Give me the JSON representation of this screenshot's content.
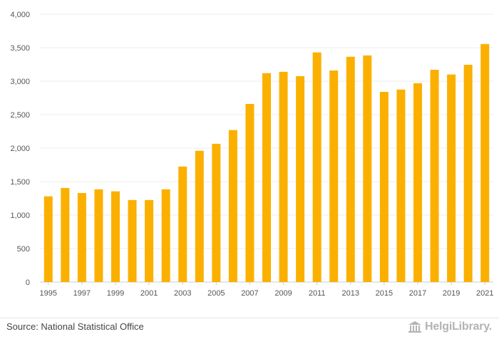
{
  "chart_data": {
    "type": "bar",
    "title": "",
    "xlabel": "",
    "ylabel": "",
    "ylim": [
      0,
      4000
    ],
    "yticks": [
      0,
      500,
      1000,
      1500,
      2000,
      2500,
      3000,
      3500,
      4000
    ],
    "ytick_labels": [
      "0",
      "500",
      "1,000",
      "1,500",
      "2,000",
      "2,500",
      "3,000",
      "3,500",
      "4,000"
    ],
    "categories": [
      "1995",
      "1996",
      "1997",
      "1998",
      "1999",
      "2000",
      "2001",
      "2002",
      "2003",
      "2004",
      "2005",
      "2006",
      "2007",
      "2008",
      "2009",
      "2010",
      "2011",
      "2012",
      "2013",
      "2014",
      "2015",
      "2016",
      "2017",
      "2018",
      "2019",
      "2020",
      "2021"
    ],
    "xtick_labels": [
      "1995",
      "1997",
      "1999",
      "2001",
      "2003",
      "2005",
      "2007",
      "2009",
      "2011",
      "2013",
      "2015",
      "2017",
      "2019",
      "2021"
    ],
    "values": [
      1280,
      1405,
      1330,
      1385,
      1355,
      1225,
      1225,
      1385,
      1725,
      1960,
      2065,
      2270,
      2660,
      3120,
      3140,
      3075,
      3430,
      3160,
      3365,
      3385,
      2840,
      2875,
      2970,
      3170,
      3100,
      3245,
      3555
    ],
    "bar_color": "#fbb000",
    "grid": true
  },
  "footer": {
    "source": "Source: National Statistical Office",
    "logo_text": "HelgiLibrary."
  }
}
